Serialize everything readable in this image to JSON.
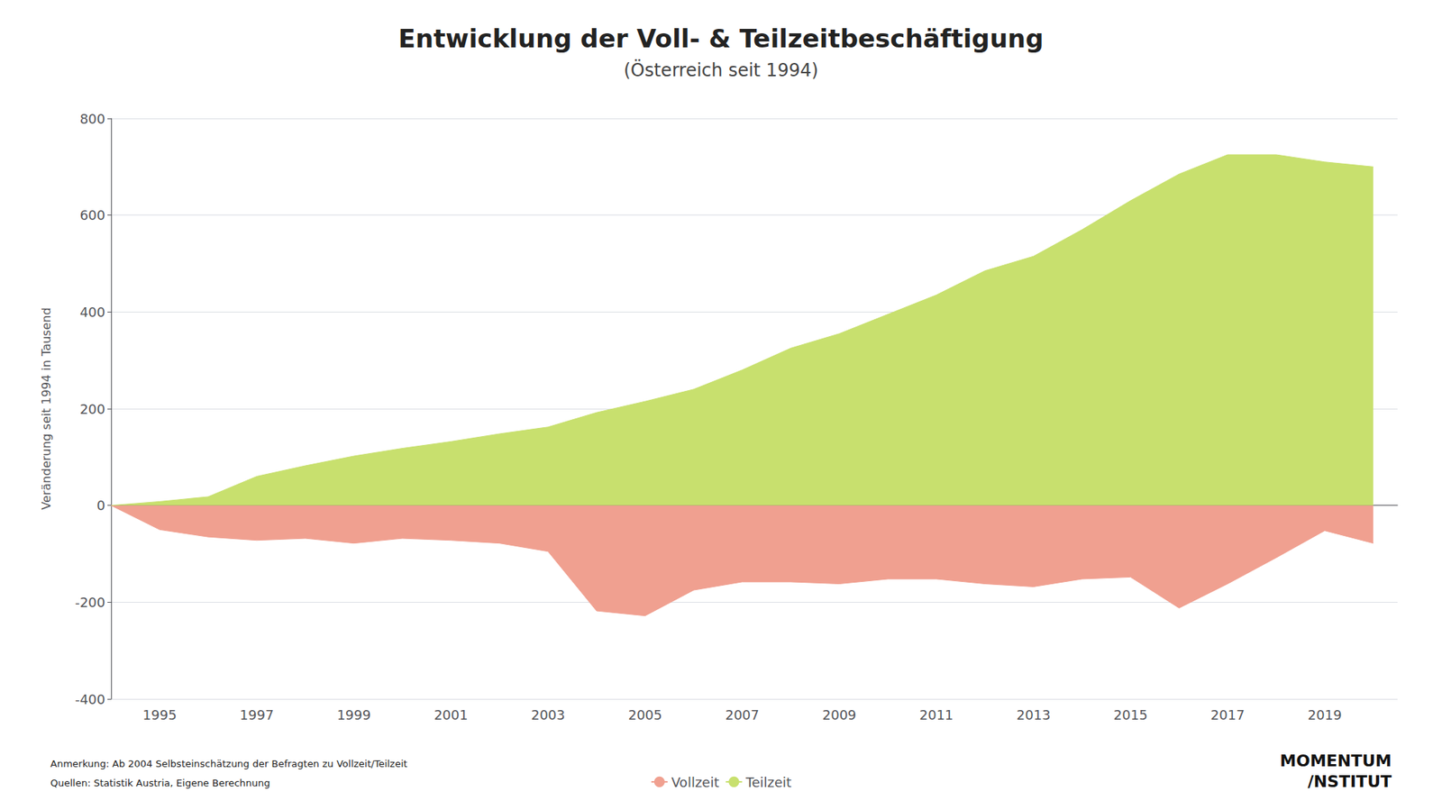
{
  "chart_data": {
    "type": "area",
    "title": "Entwicklung der Voll- & Teilzeitbeschäftigung",
    "subtitle": "(Österreich seit 1994)",
    "y_label": "Veränderung seit 1994 in Tausend",
    "annotations": [
      "Anmerkung: Ab 2004 Selbsteinschätzung der Befragten zu Vollzeit/Teilzeit",
      "Quellen: Statistik Austria, Eigene Berechnung",
      "MOMENTUM",
      "/NSTITUT"
    ],
    "x": [
      1994,
      1995,
      1996,
      1997,
      1998,
      1999,
      2000,
      2001,
      2002,
      2003,
      2004,
      2005,
      2006,
      2007,
      2008,
      2009,
      2010,
      2011,
      2012,
      2013,
      2014,
      2015,
      2016,
      2017,
      2018,
      2019,
      2020
    ],
    "series": [
      {
        "name": "Teilzeit",
        "color": "#c8e06e",
        "values": [
          0,
          8,
          18,
          60,
          82,
          102,
          118,
          132,
          148,
          162,
          192,
          215,
          240,
          280,
          325,
          355,
          395,
          435,
          485,
          515,
          570,
          630,
          685,
          725,
          725,
          710,
          700
        ]
      },
      {
        "name": "Vollzeit",
        "color": "#f0a090",
        "values": [
          0,
          -50,
          -65,
          -72,
          -68,
          -78,
          -68,
          -72,
          -78,
          -95,
          -218,
          -228,
          -175,
          -158,
          -158,
          -162,
          -152,
          -152,
          -162,
          -168,
          -152,
          -148,
          -212,
          -162,
          -108,
          -52,
          -78
        ]
      }
    ],
    "legend_order": [
      "Vollzeit",
      "Teilzeit"
    ],
    "xlim": [
      1994,
      2020.5
    ],
    "xticks": [
      1995,
      1997,
      1999,
      2001,
      2003,
      2005,
      2007,
      2009,
      2011,
      2013,
      2015,
      2017,
      2019
    ],
    "ylim": [
      -400,
      800
    ],
    "yticks": [
      -400,
      -200,
      0,
      200,
      400,
      600,
      800
    ],
    "grid": true,
    "legend": "bottom"
  }
}
